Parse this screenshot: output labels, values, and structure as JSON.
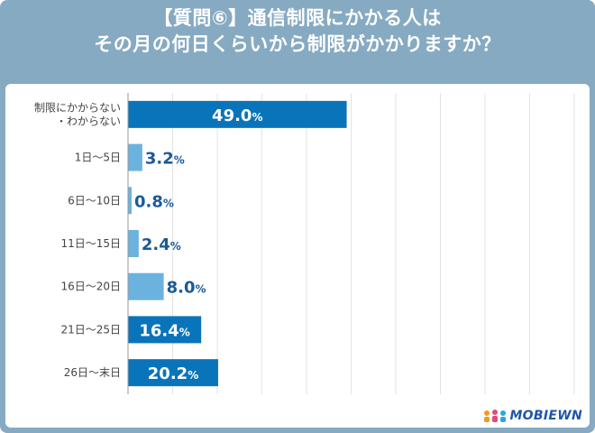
{
  "title_line1": "【質問⑥】通信制限にかかる人は",
  "title_line2": "その月の何日くらいから制限がかかりますか？",
  "logo_text": "MOBIEWN",
  "colors": {
    "frame": "#86aac2",
    "dark_bar": "#0a74ba",
    "light_bar": "#6cb2de",
    "dark_label": "#1a5a95",
    "axis": "#9a9a9a",
    "grid": "#e3e3e3"
  },
  "chart_data": {
    "type": "bar",
    "orientation": "horizontal",
    "unit": "%",
    "xlim": [
      0,
      100
    ],
    "categories": [
      [
        "制限にかからない",
        "・わからない"
      ],
      [
        "1日〜5日"
      ],
      [
        "6日〜10日"
      ],
      [
        "11日〜15日"
      ],
      [
        "16日〜20日"
      ],
      [
        "21日〜25日"
      ],
      [
        "26日〜末日"
      ]
    ],
    "values": [
      49.0,
      3.2,
      0.8,
      2.4,
      8.0,
      16.4,
      20.2
    ],
    "labels": [
      "49.0",
      "3.2",
      "0.8",
      "2.4",
      "8.0",
      "16.4",
      "20.2"
    ],
    "highlight": [
      true,
      false,
      false,
      false,
      false,
      true,
      true
    ]
  }
}
